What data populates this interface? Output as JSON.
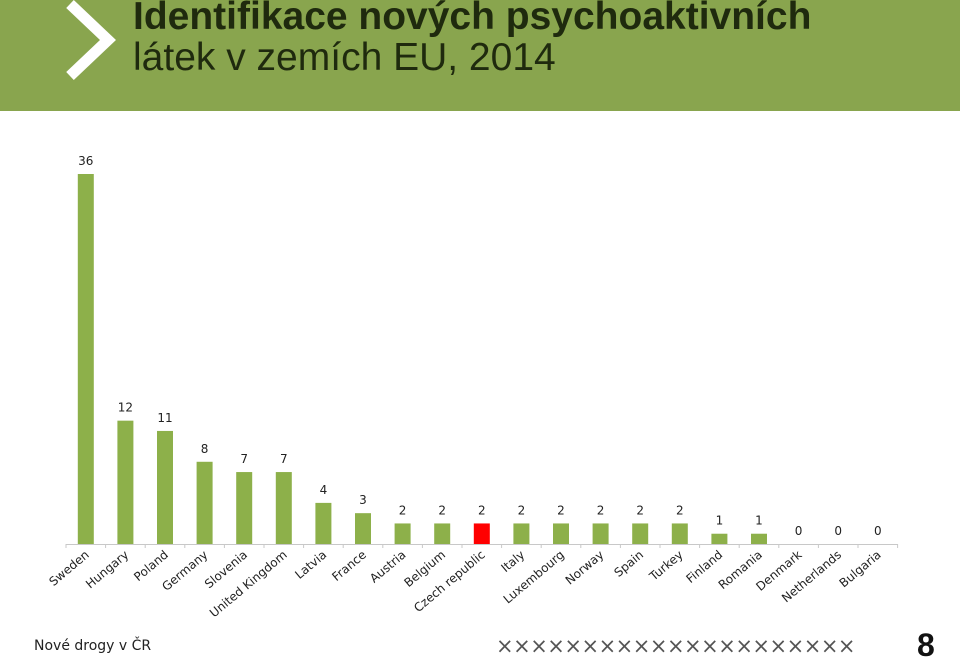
{
  "header": {
    "title_line1": "Identifikace nových psychoaktivních",
    "title_line2": "látek v zemích EU, 2014",
    "bg_color": "#89a54e"
  },
  "chart_data": {
    "type": "bar",
    "title": "",
    "xlabel": "",
    "ylabel": "",
    "ylim": [
      0,
      36
    ],
    "grid": false,
    "legend": "none",
    "categories": [
      "Sweden",
      "Hungary",
      "Poland",
      "Germany",
      "Slovenia",
      "United Kingdom",
      "Latvia",
      "France",
      "Austria",
      "Belgium",
      "Czech republic",
      "Italy",
      "Luxembourg",
      "Norway",
      "Spain",
      "Turkey",
      "Finland",
      "Romania",
      "Denmark",
      "Netherlands",
      "Bulgaria"
    ],
    "values": [
      36,
      12,
      11,
      8,
      7,
      7,
      4,
      3,
      2,
      2,
      2,
      2,
      2,
      2,
      2,
      2,
      1,
      1,
      0,
      0,
      0
    ],
    "bar_color": "#8db04a",
    "highlight_category": "Czech republic",
    "highlight_color": "#ff0000"
  },
  "footer": {
    "text": "Nové drogy v ČR",
    "pattern": "×××××××××××××××××××××",
    "page_number": "8"
  }
}
